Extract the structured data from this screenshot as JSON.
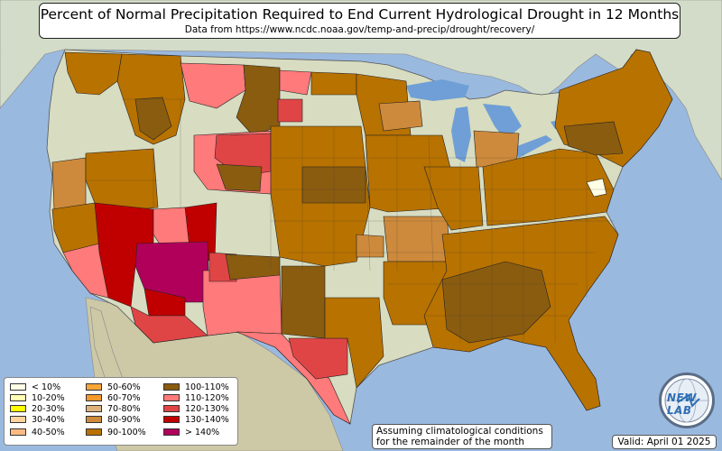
{
  "title": "Percent of Normal Precipitation Required to End Current Hydrological Drought in 12 Months",
  "subtitle": "Data from https://www.ncdc.noaa.gov/temp-and-precip/drought/recovery/",
  "legend": [
    {
      "label": "< 10%",
      "color": "#ffffe6"
    },
    {
      "label": "10-20%",
      "color": "#ffffb3"
    },
    {
      "label": "20-30%",
      "color": "#ffff00"
    },
    {
      "label": "30-40%",
      "color": "#fdd49e"
    },
    {
      "label": "40-50%",
      "color": "#fdbb84"
    },
    {
      "label": "50-60%",
      "color": "#f8a63a"
    },
    {
      "label": "60-70%",
      "color": "#f59a2a"
    },
    {
      "label": "70-80%",
      "color": "#ddb27c"
    },
    {
      "label": "80-90%",
      "color": "#cd8a3c"
    },
    {
      "label": "90-100%",
      "color": "#b87200"
    },
    {
      "label": "100-110%",
      "color": "#8a5c10"
    },
    {
      "label": "110-120%",
      "color": "#ff7a7a"
    },
    {
      "label": "120-130%",
      "color": "#e04545"
    },
    {
      "label": "130-140%",
      "color": "#c00000"
    },
    {
      "label": "> 140%",
      "color": "#b0005a"
    }
  ],
  "note": {
    "line1": "Assuming climatological conditions",
    "line2": "for the remainder of the month"
  },
  "valid": "Valid: April 01 2025",
  "logo_text": "NEW LAB",
  "colors": {
    "ocean": "#9ab9df",
    "land": "#d8dcc0",
    "canada": "#cfd8c8",
    "mexico": "#c8c4a0",
    "lakes": "#6f9fd6"
  }
}
